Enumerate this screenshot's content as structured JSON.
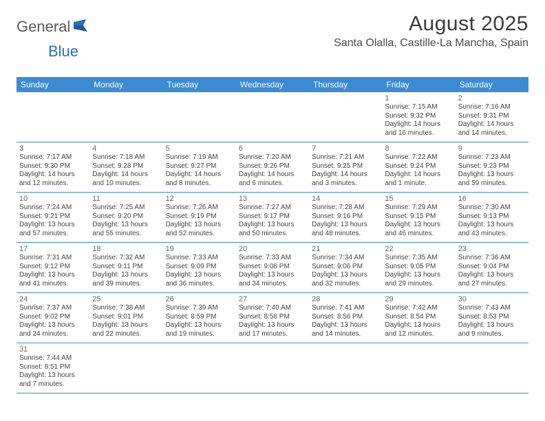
{
  "brand": {
    "part1": "General",
    "part2": "Blue"
  },
  "title": "August 2025",
  "location": "Santa Olalla, Castille-La Mancha, Spain",
  "colors": {
    "header_bg": "#3b8bd4",
    "header_text": "#ffffff",
    "rule": "#3b8bd4",
    "logo_gray": "#5a5a5a",
    "logo_blue": "#2a6fb5",
    "title_color": "#3a3a3a",
    "body_bg": "#ffffff"
  },
  "day_names": [
    "Sunday",
    "Monday",
    "Tuesday",
    "Wednesday",
    "Thursday",
    "Friday",
    "Saturday"
  ],
  "weeks": [
    [
      null,
      null,
      null,
      null,
      null,
      {
        "n": "1",
        "sunrise": "7:15 AM",
        "sunset": "9:32 PM",
        "daylight": "14 hours and 16 minutes."
      },
      {
        "n": "2",
        "sunrise": "7:16 AM",
        "sunset": "9:31 PM",
        "daylight": "14 hours and 14 minutes."
      }
    ],
    [
      {
        "n": "3",
        "sunrise": "7:17 AM",
        "sunset": "9:30 PM",
        "daylight": "14 hours and 12 minutes."
      },
      {
        "n": "4",
        "sunrise": "7:18 AM",
        "sunset": "9:28 PM",
        "daylight": "14 hours and 10 minutes."
      },
      {
        "n": "5",
        "sunrise": "7:19 AM",
        "sunset": "9:27 PM",
        "daylight": "14 hours and 8 minutes."
      },
      {
        "n": "6",
        "sunrise": "7:20 AM",
        "sunset": "9:26 PM",
        "daylight": "14 hours and 6 minutes."
      },
      {
        "n": "7",
        "sunrise": "7:21 AM",
        "sunset": "9:25 PM",
        "daylight": "14 hours and 3 minutes."
      },
      {
        "n": "8",
        "sunrise": "7:22 AM",
        "sunset": "9:24 PM",
        "daylight": "14 hours and 1 minute."
      },
      {
        "n": "9",
        "sunrise": "7:23 AM",
        "sunset": "9:23 PM",
        "daylight": "13 hours and 59 minutes."
      }
    ],
    [
      {
        "n": "10",
        "sunrise": "7:24 AM",
        "sunset": "9:21 PM",
        "daylight": "13 hours and 57 minutes."
      },
      {
        "n": "11",
        "sunrise": "7:25 AM",
        "sunset": "9:20 PM",
        "daylight": "13 hours and 55 minutes."
      },
      {
        "n": "12",
        "sunrise": "7:26 AM",
        "sunset": "9:19 PM",
        "daylight": "13 hours and 52 minutes."
      },
      {
        "n": "13",
        "sunrise": "7:27 AM",
        "sunset": "9:17 PM",
        "daylight": "13 hours and 50 minutes."
      },
      {
        "n": "14",
        "sunrise": "7:28 AM",
        "sunset": "9:16 PM",
        "daylight": "13 hours and 48 minutes."
      },
      {
        "n": "15",
        "sunrise": "7:29 AM",
        "sunset": "9:15 PM",
        "daylight": "13 hours and 46 minutes."
      },
      {
        "n": "16",
        "sunrise": "7:30 AM",
        "sunset": "9:13 PM",
        "daylight": "13 hours and 43 minutes."
      }
    ],
    [
      {
        "n": "17",
        "sunrise": "7:31 AM",
        "sunset": "9:12 PM",
        "daylight": "13 hours and 41 minutes."
      },
      {
        "n": "18",
        "sunrise": "7:32 AM",
        "sunset": "9:11 PM",
        "daylight": "13 hours and 39 minutes."
      },
      {
        "n": "19",
        "sunrise": "7:33 AM",
        "sunset": "9:09 PM",
        "daylight": "13 hours and 36 minutes."
      },
      {
        "n": "20",
        "sunrise": "7:33 AM",
        "sunset": "9:08 PM",
        "daylight": "13 hours and 34 minutes."
      },
      {
        "n": "21",
        "sunrise": "7:34 AM",
        "sunset": "9:06 PM",
        "daylight": "13 hours and 32 minutes."
      },
      {
        "n": "22",
        "sunrise": "7:35 AM",
        "sunset": "9:05 PM",
        "daylight": "13 hours and 29 minutes."
      },
      {
        "n": "23",
        "sunrise": "7:36 AM",
        "sunset": "9:04 PM",
        "daylight": "13 hours and 27 minutes."
      }
    ],
    [
      {
        "n": "24",
        "sunrise": "7:37 AM",
        "sunset": "9:02 PM",
        "daylight": "13 hours and 24 minutes."
      },
      {
        "n": "25",
        "sunrise": "7:38 AM",
        "sunset": "9:01 PM",
        "daylight": "13 hours and 22 minutes."
      },
      {
        "n": "26",
        "sunrise": "7:39 AM",
        "sunset": "8:59 PM",
        "daylight": "13 hours and 19 minutes."
      },
      {
        "n": "27",
        "sunrise": "7:40 AM",
        "sunset": "8:58 PM",
        "daylight": "13 hours and 17 minutes."
      },
      {
        "n": "28",
        "sunrise": "7:41 AM",
        "sunset": "8:56 PM",
        "daylight": "13 hours and 14 minutes."
      },
      {
        "n": "29",
        "sunrise": "7:42 AM",
        "sunset": "8:54 PM",
        "daylight": "13 hours and 12 minutes."
      },
      {
        "n": "30",
        "sunrise": "7:43 AM",
        "sunset": "8:53 PM",
        "daylight": "13 hours and 9 minutes."
      }
    ],
    [
      {
        "n": "31",
        "sunrise": "7:44 AM",
        "sunset": "8:51 PM",
        "daylight": "13 hours and 7 minutes."
      },
      null,
      null,
      null,
      null,
      null,
      null
    ]
  ],
  "labels": {
    "sunrise_prefix": "Sunrise: ",
    "sunset_prefix": "Sunset: ",
    "daylight_prefix": "Daylight: "
  }
}
